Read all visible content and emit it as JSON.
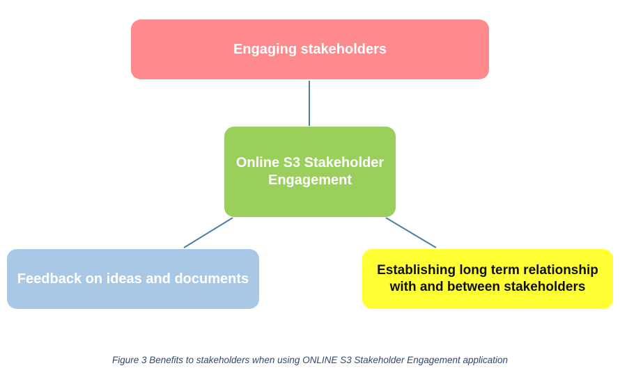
{
  "diagram": {
    "top_node": "Engaging stakeholders",
    "center_node": "Online S3 Stakeholder Engagement",
    "left_node": "Feedback on ideas and documents",
    "right_node": "Establishing long term relationship with and between stakeholders",
    "colors": {
      "top_node": "#ff8a8e",
      "center_node": "#9acf5c",
      "left_node": "#a8c8e6",
      "right_node": "#ffff33",
      "connector": "#4f7f9f",
      "caption": "#2f4a6e"
    }
  },
  "caption": "Figure 3 Benefits to stakeholders when using ONLINE S3 Stakeholder Engagement application"
}
